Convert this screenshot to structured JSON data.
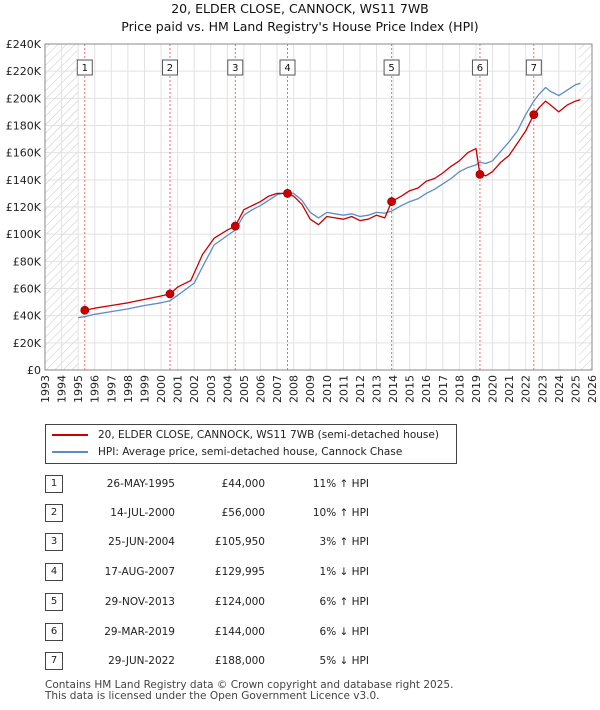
{
  "title": "20, ELDER CLOSE, CANNOCK, WS11 7WB",
  "subtitle": "Price paid vs. HM Land Registry's House Price Index (HPI)",
  "colors": {
    "property": "#cc0000",
    "hpi": "#5b8dc9",
    "hatch": "#cccccc",
    "marker_line": "#ff6666"
  },
  "chart_data": {
    "type": "line",
    "x_axis": {
      "min": 1993,
      "max": 2026,
      "ticks": [
        1993,
        1994,
        1995,
        1996,
        1997,
        1998,
        1999,
        2000,
        2001,
        2002,
        2003,
        2004,
        2005,
        2006,
        2007,
        2008,
        2009,
        2010,
        2011,
        2012,
        2013,
        2014,
        2015,
        2016,
        2017,
        2018,
        2019,
        2020,
        2021,
        2022,
        2023,
        2024,
        2025,
        2026
      ]
    },
    "y_axis": {
      "min": 0,
      "max": 240000,
      "tick_values": [
        0,
        20000,
        40000,
        60000,
        80000,
        100000,
        120000,
        140000,
        160000,
        180000,
        200000,
        220000,
        240000
      ],
      "tick_labels": [
        "£0",
        "£20K",
        "£40K",
        "£60K",
        "£80K",
        "£100K",
        "£120K",
        "£140K",
        "£160K",
        "£180K",
        "£200K",
        "£220K",
        "£240K"
      ]
    },
    "grid": true,
    "legend_placement": "below",
    "hatched_before": 1995.0,
    "hatched_after": 2025.2,
    "series": [
      {
        "name": "20, ELDER CLOSE, CANNOCK, WS11 7WB (semi-detached house)",
        "color": "#cc0000",
        "points": [
          [
            1995.4,
            44000
          ],
          [
            1996.0,
            45500
          ],
          [
            1997.0,
            47500
          ],
          [
            1998.0,
            49500
          ],
          [
            1999.0,
            52000
          ],
          [
            2000.0,
            54500
          ],
          [
            2000.54,
            56000
          ],
          [
            2001.0,
            61000
          ],
          [
            2001.8,
            66000
          ],
          [
            2002.5,
            85000
          ],
          [
            2003.2,
            97000
          ],
          [
            2004.0,
            103000
          ],
          [
            2004.48,
            105950
          ],
          [
            2005.0,
            118000
          ],
          [
            2005.5,
            121000
          ],
          [
            2006.0,
            124000
          ],
          [
            2006.5,
            128000
          ],
          [
            2007.0,
            130000
          ],
          [
            2007.63,
            129995
          ],
          [
            2008.0,
            128000
          ],
          [
            2008.5,
            122000
          ],
          [
            2009.0,
            111000
          ],
          [
            2009.5,
            107000
          ],
          [
            2010.0,
            113000
          ],
          [
            2010.5,
            112000
          ],
          [
            2011.0,
            111000
          ],
          [
            2011.5,
            113000
          ],
          [
            2012.0,
            110000
          ],
          [
            2012.5,
            111000
          ],
          [
            2013.0,
            114000
          ],
          [
            2013.5,
            112000
          ],
          [
            2013.91,
            124000
          ],
          [
            2014.5,
            128000
          ],
          [
            2015.0,
            132000
          ],
          [
            2015.5,
            134000
          ],
          [
            2016.0,
            139000
          ],
          [
            2016.5,
            141000
          ],
          [
            2017.0,
            145000
          ],
          [
            2017.5,
            150000
          ],
          [
            2018.0,
            154000
          ],
          [
            2018.5,
            160000
          ],
          [
            2019.0,
            163000
          ],
          [
            2019.24,
            144000
          ],
          [
            2019.6,
            143000
          ],
          [
            2020.0,
            146000
          ],
          [
            2020.5,
            153000
          ],
          [
            2021.0,
            158000
          ],
          [
            2021.5,
            167000
          ],
          [
            2022.0,
            176000
          ],
          [
            2022.49,
            188000
          ],
          [
            2022.8,
            193000
          ],
          [
            2023.2,
            198000
          ],
          [
            2023.5,
            195000
          ],
          [
            2024.0,
            190000
          ],
          [
            2024.5,
            195000
          ],
          [
            2025.0,
            198000
          ],
          [
            2025.3,
            199000
          ]
        ]
      },
      {
        "name": "HPI: Average price, semi-detached house, Cannock Chase",
        "color": "#5b8dc9",
        "points": [
          [
            1995.0,
            38500
          ],
          [
            1995.5,
            39500
          ],
          [
            1996.0,
            41000
          ],
          [
            1997.0,
            43000
          ],
          [
            1998.0,
            45000
          ],
          [
            1999.0,
            47500
          ],
          [
            2000.0,
            49500
          ],
          [
            2000.54,
            51000
          ],
          [
            2001.0,
            55000
          ],
          [
            2002.0,
            64000
          ],
          [
            2002.5,
            76000
          ],
          [
            2003.2,
            92000
          ],
          [
            2004.0,
            99000
          ],
          [
            2004.48,
            103000
          ],
          [
            2005.0,
            114000
          ],
          [
            2005.5,
            118000
          ],
          [
            2006.0,
            121000
          ],
          [
            2006.5,
            125000
          ],
          [
            2007.0,
            129000
          ],
          [
            2007.63,
            131000
          ],
          [
            2008.0,
            130000
          ],
          [
            2008.5,
            125000
          ],
          [
            2009.0,
            116000
          ],
          [
            2009.5,
            112000
          ],
          [
            2010.0,
            116000
          ],
          [
            2010.5,
            115000
          ],
          [
            2011.0,
            114000
          ],
          [
            2011.5,
            115000
          ],
          [
            2012.0,
            113000
          ],
          [
            2012.5,
            114000
          ],
          [
            2013.0,
            116000
          ],
          [
            2013.5,
            115500
          ],
          [
            2013.91,
            117000
          ],
          [
            2014.5,
            121000
          ],
          [
            2015.0,
            124000
          ],
          [
            2015.5,
            126000
          ],
          [
            2016.0,
            130000
          ],
          [
            2016.5,
            133000
          ],
          [
            2017.0,
            137000
          ],
          [
            2017.5,
            141000
          ],
          [
            2018.0,
            146000
          ],
          [
            2018.5,
            149000
          ],
          [
            2019.0,
            151000
          ],
          [
            2019.24,
            153000
          ],
          [
            2019.6,
            152000
          ],
          [
            2020.0,
            154000
          ],
          [
            2020.5,
            161000
          ],
          [
            2021.0,
            168000
          ],
          [
            2021.5,
            176000
          ],
          [
            2022.0,
            188000
          ],
          [
            2022.49,
            198000
          ],
          [
            2022.8,
            203000
          ],
          [
            2023.2,
            208000
          ],
          [
            2023.5,
            205000
          ],
          [
            2024.0,
            202000
          ],
          [
            2024.5,
            206000
          ],
          [
            2025.0,
            210000
          ],
          [
            2025.3,
            211000
          ]
        ]
      }
    ],
    "sales": [
      {
        "label": "1",
        "date": "26-MAY-1995",
        "x": 1995.4,
        "price": 44000,
        "price_label": "£44,000",
        "hpi_label": "11% ↑ HPI"
      },
      {
        "label": "2",
        "date": "14-JUL-2000",
        "x": 2000.54,
        "price": 56000,
        "price_label": "£56,000",
        "hpi_label": "10% ↑ HPI"
      },
      {
        "label": "3",
        "date": "25-JUN-2004",
        "x": 2004.48,
        "price": 105950,
        "price_label": "£105,950",
        "hpi_label": "3% ↑ HPI"
      },
      {
        "label": "4",
        "date": "17-AUG-2007",
        "x": 2007.63,
        "price": 129995,
        "price_label": "£129,995",
        "hpi_label": "1% ↓ HPI"
      },
      {
        "label": "5",
        "date": "29-NOV-2013",
        "x": 2013.91,
        "price": 124000,
        "price_label": "£124,000",
        "hpi_label": "6% ↑ HPI"
      },
      {
        "label": "6",
        "date": "29-MAR-2019",
        "x": 2019.24,
        "price": 144000,
        "price_label": "£144,000",
        "hpi_label": "6% ↓ HPI"
      },
      {
        "label": "7",
        "date": "29-JUN-2022",
        "x": 2022.49,
        "price": 188000,
        "price_label": "£188,000",
        "hpi_label": "5% ↓ HPI"
      }
    ]
  },
  "footer": {
    "line1": "Contains HM Land Registry data © Crown copyright and database right 2025.",
    "line2": "This data is licensed under the Open Government Licence v3.0."
  }
}
